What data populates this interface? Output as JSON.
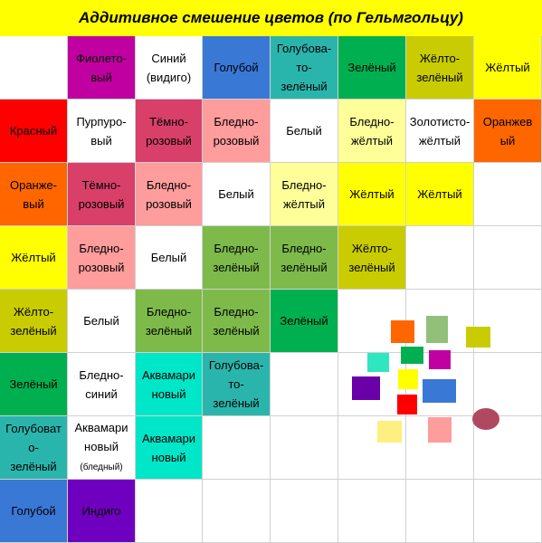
{
  "title": "Аддитивное смешение цветов (по Гельмгольцу)",
  "grid": [
    [
      {
        "text": "",
        "bg": "#ffffff"
      },
      {
        "text": "Фиолето-\nвый",
        "bg": "#c000a0"
      },
      {
        "text": "Синий\n(видиго)",
        "bg": "#ffffff"
      },
      {
        "text": "Голубой",
        "bg": "#3a78d6"
      },
      {
        "text": "Голубова-\nто-\nзелёный",
        "bg": "#2ab5ac"
      },
      {
        "text": "Зелёный",
        "bg": "#00b050"
      },
      {
        "text": "Жёлто-\nзелёный",
        "bg": "#c8cc00"
      },
      {
        "text": "Жёлтый",
        "bg": "#ffff00"
      }
    ],
    [
      {
        "text": "Красный",
        "bg": "#ff0000"
      },
      {
        "text": "Пурпуро-\nвый",
        "bg": "#ffffff"
      },
      {
        "text": "Тёмно-\nрозовый",
        "bg": "#d8406a"
      },
      {
        "text": "Бледно-\nрозовый",
        "bg": "#ff9c9c"
      },
      {
        "text": "Белый",
        "bg": "#ffffff"
      },
      {
        "text": "Бледно-\nжёлтый",
        "bg": "#ffff99"
      },
      {
        "text": "Золотисто-\nжёлтый",
        "bg": "#ffffff"
      },
      {
        "text": "Оранжев\nый",
        "bg": "#ff6600"
      }
    ],
    [
      {
        "text": "Оранже-\nвый",
        "bg": "#ff6600"
      },
      {
        "text": "Тёмно-\nрозовый",
        "bg": "#d8406a"
      },
      {
        "text": "Бледно-\nрозовый",
        "bg": "#ff9c9c"
      },
      {
        "text": "Белый",
        "bg": "#ffffff"
      },
      {
        "text": "Бледно-\nжёлтый",
        "bg": "#ffff99"
      },
      {
        "text": "Жёлтый",
        "bg": "#ffff00"
      },
      {
        "text": "Жёлтый",
        "bg": "#ffff00"
      },
      {
        "text": "",
        "bg": "#ffffff"
      }
    ],
    [
      {
        "text": "Жёлтый",
        "bg": "#ffff00"
      },
      {
        "text": "Бледно-\nрозовый",
        "bg": "#ff9c9c"
      },
      {
        "text": "Белый",
        "bg": "#ffffff"
      },
      {
        "text": "Бледно-\nзелёный",
        "bg": "#7dba4a"
      },
      {
        "text": "Бледно-\nзелёный",
        "bg": "#7dba4a"
      },
      {
        "text": "Жёлто-\nзелёный",
        "bg": "#c8cc00"
      },
      {
        "text": "",
        "bg": "#ffffff"
      },
      {
        "text": "",
        "bg": "#ffffff"
      }
    ],
    [
      {
        "text": "Жёлто-\nзелёный",
        "bg": "#c8cc00"
      },
      {
        "text": "Белый",
        "bg": "#ffffff"
      },
      {
        "text": "Бледно-\nзелёный",
        "bg": "#7dba4a"
      },
      {
        "text": "Бледно-\nзелёный",
        "bg": "#7dba4a"
      },
      {
        "text": "Зелёный",
        "bg": "#00b050"
      },
      {
        "text": "",
        "bg": "#ffffff"
      },
      {
        "text": "",
        "bg": "#ffffff"
      },
      {
        "text": "",
        "bg": "#ffffff"
      }
    ],
    [
      {
        "text": "Зелёный",
        "bg": "#00b050"
      },
      {
        "text": "Бледно-\nсиний",
        "bg": "#ffffff"
      },
      {
        "text": "Аквамари\nновый",
        "bg": "#00e6c8"
      },
      {
        "text": "Голубова-\nто-\nзелёный",
        "bg": "#2ab5ac"
      },
      {
        "text": "",
        "bg": "#ffffff"
      },
      {
        "text": "",
        "bg": "#ffffff"
      },
      {
        "text": "",
        "bg": "#ffffff"
      },
      {
        "text": "",
        "bg": "#ffffff"
      }
    ],
    [
      {
        "text": "Голубоват\nо-\nзелёный",
        "bg": "#2ab5ac"
      },
      {
        "text": "Аквамари\nновый",
        "small": "(бледный)",
        "bg": "#ffffff"
      },
      {
        "text": "Аквамари\nновый",
        "bg": "#00e6c8"
      },
      {
        "text": "",
        "bg": "#ffffff"
      },
      {
        "text": "",
        "bg": "#ffffff"
      },
      {
        "text": "",
        "bg": "#ffffff"
      },
      {
        "text": "",
        "bg": "#ffffff"
      },
      {
        "text": "",
        "bg": "#ffffff"
      }
    ],
    [
      {
        "text": "Голубой",
        "bg": "#3a78d6"
      },
      {
        "text": "Индиго",
        "bg": "#7000c0"
      },
      {
        "text": "",
        "bg": "#ffffff"
      },
      {
        "text": "",
        "bg": "#ffffff"
      },
      {
        "text": "",
        "bg": "#ffffff"
      },
      {
        "text": "",
        "bg": "#ffffff"
      },
      {
        "text": "",
        "bg": "#ffffff"
      },
      {
        "text": "",
        "bg": "#ffffff"
      }
    ]
  ],
  "swatches": [
    {
      "color": "#ff6600"
    },
    {
      "color": "#92c07a"
    },
    {
      "color": "#c8cc00"
    },
    {
      "color": "#00b050"
    },
    {
      "color": "#2ee6c0"
    },
    {
      "color": "#c000a0"
    },
    {
      "color": "#ffff00"
    },
    {
      "color": "#6a00a8"
    },
    {
      "color": "#3a78d6"
    },
    {
      "color": "#ff0000"
    },
    {
      "color": "#ff9c9c"
    },
    {
      "color": "#ffee80"
    },
    {
      "color": "#b04860"
    }
  ]
}
